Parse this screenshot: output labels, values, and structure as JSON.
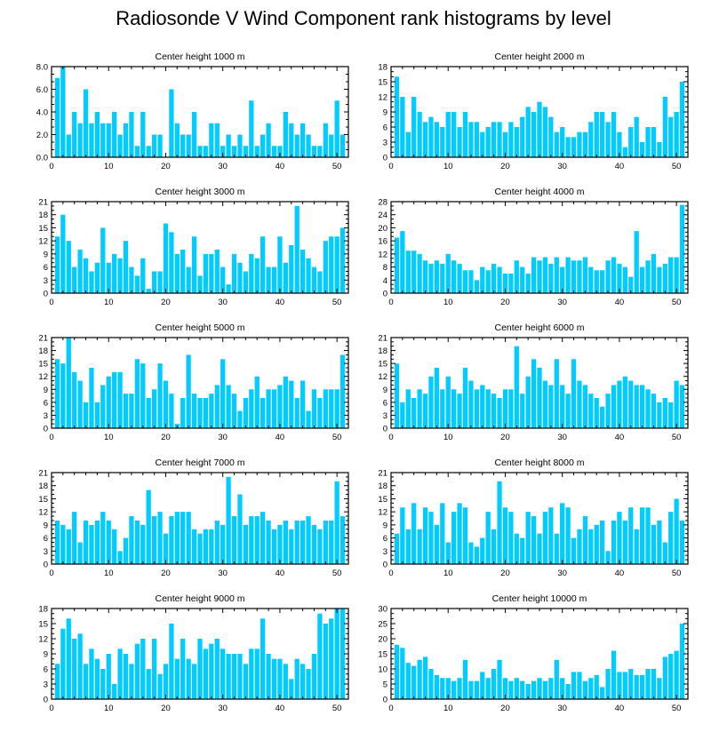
{
  "figure_title": "Radiosonde V Wind Component rank histograms by level",
  "colors": {
    "bar": "#00ccff",
    "axis": "#000000"
  },
  "chart_data": [
    {
      "type": "bar",
      "title": "Center height 1000 m",
      "xlabel": "",
      "ylabel": "",
      "xlim": [
        0,
        52
      ],
      "ylim": [
        0,
        8
      ],
      "xticks": [
        0,
        10,
        20,
        30,
        40,
        50
      ],
      "yticks": [
        0,
        2,
        4,
        6,
        8
      ],
      "ytick_labels": [
        "0.0",
        "2.0",
        "4.0",
        "6.0",
        "8.0"
      ],
      "x": [
        1,
        2,
        3,
        4,
        5,
        6,
        7,
        8,
        9,
        10,
        11,
        12,
        13,
        14,
        15,
        16,
        17,
        18,
        19,
        20,
        21,
        22,
        23,
        24,
        25,
        26,
        27,
        28,
        29,
        30,
        31,
        32,
        33,
        34,
        35,
        36,
        37,
        38,
        39,
        40,
        41,
        42,
        43,
        44,
        45,
        46,
        47,
        48,
        49,
        50,
        51
      ],
      "values": [
        7,
        8,
        2,
        4,
        3,
        6,
        3,
        4,
        3,
        3,
        4,
        2,
        3,
        4,
        1,
        4,
        1,
        2,
        2,
        0,
        6,
        3,
        2,
        2,
        4,
        1,
        1,
        3,
        3,
        1,
        2,
        1,
        2,
        1,
        5,
        1,
        2,
        3,
        1,
        1,
        4,
        3,
        2,
        3,
        2,
        1,
        1,
        3,
        2,
        5,
        2
      ]
    },
    {
      "type": "bar",
      "title": "Center height 2000 m",
      "xlabel": "",
      "ylabel": "",
      "xlim": [
        0,
        52
      ],
      "ylim": [
        0,
        18
      ],
      "xticks": [
        0,
        10,
        20,
        30,
        40,
        50
      ],
      "yticks": [
        0,
        3,
        6,
        9,
        12,
        15,
        18
      ],
      "ytick_labels": [
        "0",
        "3",
        "6",
        "9",
        "12",
        "15",
        "18"
      ],
      "x": [
        1,
        2,
        3,
        4,
        5,
        6,
        7,
        8,
        9,
        10,
        11,
        12,
        13,
        14,
        15,
        16,
        17,
        18,
        19,
        20,
        21,
        22,
        23,
        24,
        25,
        26,
        27,
        28,
        29,
        30,
        31,
        32,
        33,
        34,
        35,
        36,
        37,
        38,
        39,
        40,
        41,
        42,
        43,
        44,
        45,
        46,
        47,
        48,
        49,
        50,
        51
      ],
      "values": [
        16,
        12,
        5,
        12,
        9,
        7,
        8,
        7,
        6,
        9,
        9,
        6,
        9,
        7,
        7,
        5,
        6,
        7,
        7,
        5,
        7,
        6,
        8,
        10,
        9,
        11,
        10,
        8,
        5,
        6,
        4,
        4,
        5,
        5,
        7,
        9,
        9,
        7,
        9,
        5,
        2,
        6,
        8,
        3,
        6,
        6,
        3,
        12,
        8,
        9,
        15
      ]
    },
    {
      "type": "bar",
      "title": "Center height 3000 m",
      "xlabel": "",
      "ylabel": "",
      "xlim": [
        0,
        52
      ],
      "ylim": [
        0,
        21
      ],
      "xticks": [
        0,
        10,
        20,
        30,
        40,
        50
      ],
      "yticks": [
        0,
        3,
        6,
        9,
        12,
        15,
        18,
        21
      ],
      "ytick_labels": [
        "0",
        "3",
        "6",
        "9",
        "12",
        "15",
        "18",
        "21"
      ],
      "x": [
        1,
        2,
        3,
        4,
        5,
        6,
        7,
        8,
        9,
        10,
        11,
        12,
        13,
        14,
        15,
        16,
        17,
        18,
        19,
        20,
        21,
        22,
        23,
        24,
        25,
        26,
        27,
        28,
        29,
        30,
        31,
        32,
        33,
        34,
        35,
        36,
        37,
        38,
        39,
        40,
        41,
        42,
        43,
        44,
        45,
        46,
        47,
        48,
        49,
        50,
        51
      ],
      "values": [
        13,
        18,
        12,
        6,
        10,
        8,
        5,
        7,
        15,
        7,
        9,
        8,
        12,
        6,
        4,
        8,
        1,
        5,
        5,
        16,
        14,
        9,
        10,
        6,
        13,
        4,
        9,
        9,
        10,
        6,
        2,
        9,
        7,
        5,
        9,
        8,
        13,
        6,
        6,
        13,
        7,
        11,
        20,
        10,
        8,
        6,
        5,
        12,
        13,
        13,
        15
      ]
    },
    {
      "type": "bar",
      "title": "Center height 4000 m",
      "xlabel": "",
      "ylabel": "",
      "xlim": [
        0,
        52
      ],
      "ylim": [
        0,
        28
      ],
      "xticks": [
        0,
        10,
        20,
        30,
        40,
        50
      ],
      "yticks": [
        0,
        4,
        8,
        12,
        16,
        20,
        24,
        28
      ],
      "ytick_labels": [
        "0",
        "4",
        "8",
        "12",
        "16",
        "20",
        "24",
        "28"
      ],
      "x": [
        1,
        2,
        3,
        4,
        5,
        6,
        7,
        8,
        9,
        10,
        11,
        12,
        13,
        14,
        15,
        16,
        17,
        18,
        19,
        20,
        21,
        22,
        23,
        24,
        25,
        26,
        27,
        28,
        29,
        30,
        31,
        32,
        33,
        34,
        35,
        36,
        37,
        38,
        39,
        40,
        41,
        42,
        43,
        44,
        45,
        46,
        47,
        48,
        49,
        50,
        51
      ],
      "values": [
        17,
        19,
        13,
        13,
        12,
        10,
        9,
        10,
        9,
        12,
        10,
        9,
        7,
        7,
        4,
        8,
        7,
        9,
        8,
        6,
        6,
        10,
        8,
        6,
        11,
        10,
        11,
        9,
        11,
        8,
        11,
        10,
        10,
        11,
        8,
        7,
        7,
        10,
        11,
        9,
        8,
        5,
        19,
        8,
        10,
        12,
        8,
        9,
        11,
        11,
        27
      ]
    },
    {
      "type": "bar",
      "title": "Center height 5000 m",
      "xlabel": "",
      "ylabel": "",
      "xlim": [
        0,
        52
      ],
      "ylim": [
        0,
        21
      ],
      "xticks": [
        0,
        10,
        20,
        30,
        40,
        50
      ],
      "yticks": [
        0,
        3,
        6,
        9,
        12,
        15,
        18,
        21
      ],
      "ytick_labels": [
        "0",
        "3",
        "6",
        "9",
        "12",
        "15",
        "18",
        "21"
      ],
      "x": [
        1,
        2,
        3,
        4,
        5,
        6,
        7,
        8,
        9,
        10,
        11,
        12,
        13,
        14,
        15,
        16,
        17,
        18,
        19,
        20,
        21,
        22,
        23,
        24,
        25,
        26,
        27,
        28,
        29,
        30,
        31,
        32,
        33,
        34,
        35,
        36,
        37,
        38,
        39,
        40,
        41,
        42,
        43,
        44,
        45,
        46,
        47,
        48,
        49,
        50,
        51
      ],
      "values": [
        16,
        15,
        21,
        13,
        11,
        6,
        14,
        6,
        10,
        12,
        13,
        13,
        8,
        8,
        16,
        15,
        7,
        9,
        15,
        11,
        8,
        1,
        7,
        17,
        8,
        7,
        7,
        8,
        10,
        16,
        10,
        8,
        4,
        7,
        9,
        12,
        7,
        9,
        9,
        10,
        12,
        11,
        7,
        11,
        4,
        9,
        7,
        9,
        9,
        9,
        17
      ]
    },
    {
      "type": "bar",
      "title": "Center height 6000 m",
      "xlabel": "",
      "ylabel": "",
      "xlim": [
        0,
        52
      ],
      "ylim": [
        0,
        21
      ],
      "xticks": [
        0,
        10,
        20,
        30,
        40,
        50
      ],
      "yticks": [
        0,
        3,
        6,
        9,
        12,
        15,
        18,
        21
      ],
      "ytick_labels": [
        "0",
        "3",
        "6",
        "9",
        "12",
        "15",
        "18",
        "21"
      ],
      "x": [
        1,
        2,
        3,
        4,
        5,
        6,
        7,
        8,
        9,
        10,
        11,
        12,
        13,
        14,
        15,
        16,
        17,
        18,
        19,
        20,
        21,
        22,
        23,
        24,
        25,
        26,
        27,
        28,
        29,
        30,
        31,
        32,
        33,
        34,
        35,
        36,
        37,
        38,
        39,
        40,
        41,
        42,
        43,
        44,
        45,
        46,
        47,
        48,
        49,
        50,
        51
      ],
      "values": [
        15,
        6,
        9,
        7,
        9,
        8,
        12,
        14,
        9,
        12,
        9,
        8,
        14,
        11,
        9,
        10,
        9,
        8,
        7,
        9,
        9,
        19,
        8,
        12,
        16,
        14,
        11,
        10,
        16,
        10,
        8,
        16,
        11,
        10,
        8,
        7,
        5,
        8,
        10,
        11,
        12,
        11,
        10,
        10,
        9,
        8,
        6,
        7,
        6,
        11,
        10
      ]
    },
    {
      "type": "bar",
      "title": "Center height 7000 m",
      "xlabel": "",
      "ylabel": "",
      "xlim": [
        0,
        52
      ],
      "ylim": [
        0,
        21
      ],
      "xticks": [
        0,
        10,
        20,
        30,
        40,
        50
      ],
      "yticks": [
        0,
        3,
        6,
        9,
        12,
        15,
        18,
        21
      ],
      "ytick_labels": [
        "0",
        "3",
        "6",
        "9",
        "12",
        "15",
        "18",
        "21"
      ],
      "x": [
        1,
        2,
        3,
        4,
        5,
        6,
        7,
        8,
        9,
        10,
        11,
        12,
        13,
        14,
        15,
        16,
        17,
        18,
        19,
        20,
        21,
        22,
        23,
        24,
        25,
        26,
        27,
        28,
        29,
        30,
        31,
        32,
        33,
        34,
        35,
        36,
        37,
        38,
        39,
        40,
        41,
        42,
        43,
        44,
        45,
        46,
        47,
        48,
        49,
        50,
        51
      ],
      "values": [
        10,
        9,
        8,
        12,
        5,
        10,
        9,
        10,
        12,
        10,
        8,
        3,
        6,
        11,
        10,
        9,
        17,
        11,
        12,
        7,
        11,
        12,
        12,
        12,
        8,
        7,
        8,
        8,
        10,
        9,
        20,
        11,
        16,
        9,
        11,
        11,
        12,
        10,
        8,
        9,
        10,
        8,
        10,
        10,
        11,
        9,
        8,
        10,
        10,
        19,
        11
      ]
    },
    {
      "type": "bar",
      "title": "Center height 8000 m",
      "xlabel": "",
      "ylabel": "",
      "xlim": [
        0,
        52
      ],
      "ylim": [
        0,
        21
      ],
      "xticks": [
        0,
        10,
        20,
        30,
        40,
        50
      ],
      "yticks": [
        0,
        3,
        6,
        9,
        12,
        15,
        18,
        21
      ],
      "ytick_labels": [
        "0",
        "3",
        "6",
        "9",
        "12",
        "15",
        "18",
        "21"
      ],
      "x": [
        1,
        2,
        3,
        4,
        5,
        6,
        7,
        8,
        9,
        10,
        11,
        12,
        13,
        14,
        15,
        16,
        17,
        18,
        19,
        20,
        21,
        22,
        23,
        24,
        25,
        26,
        27,
        28,
        29,
        30,
        31,
        32,
        33,
        34,
        35,
        36,
        37,
        38,
        39,
        40,
        41,
        42,
        43,
        44,
        45,
        46,
        47,
        48,
        49,
        50,
        51
      ],
      "values": [
        7,
        13,
        8,
        14,
        8,
        13,
        12,
        9,
        14,
        5,
        12,
        14,
        13,
        5,
        4,
        6,
        12,
        8,
        19,
        13,
        12,
        7,
        6,
        12,
        11,
        7,
        12,
        13,
        7,
        14,
        13,
        6,
        8,
        11,
        8,
        9,
        10,
        3,
        10,
        12,
        10,
        13,
        8,
        13,
        13,
        9,
        10,
        5,
        12,
        15,
        10
      ]
    },
    {
      "type": "bar",
      "title": "Center height 9000 m",
      "xlabel": "",
      "ylabel": "",
      "xlim": [
        0,
        52
      ],
      "ylim": [
        0,
        18
      ],
      "xticks": [
        0,
        10,
        20,
        30,
        40,
        50
      ],
      "yticks": [
        0,
        3,
        6,
        9,
        12,
        15,
        18
      ],
      "ytick_labels": [
        "0",
        "3",
        "6",
        "9",
        "12",
        "15",
        "18"
      ],
      "x": [
        1,
        2,
        3,
        4,
        5,
        6,
        7,
        8,
        9,
        10,
        11,
        12,
        13,
        14,
        15,
        16,
        17,
        18,
        19,
        20,
        21,
        22,
        23,
        24,
        25,
        26,
        27,
        28,
        29,
        30,
        31,
        32,
        33,
        34,
        35,
        36,
        37,
        38,
        39,
        40,
        41,
        42,
        43,
        44,
        45,
        46,
        47,
        48,
        49,
        50,
        51
      ],
      "values": [
        7,
        14,
        16,
        12,
        13,
        7,
        10,
        8,
        6,
        9,
        3,
        10,
        9,
        7,
        11,
        12,
        6,
        12,
        5,
        7,
        15,
        8,
        12,
        8,
        7,
        12,
        10,
        11,
        12,
        10,
        9,
        9,
        9,
        7,
        10,
        10,
        16,
        9,
        8,
        8,
        7,
        4,
        8,
        7,
        6,
        9,
        17,
        15,
        16,
        18,
        18
      ]
    },
    {
      "type": "bar",
      "title": "Center height 10000 m",
      "xlabel": "",
      "ylabel": "",
      "xlim": [
        0,
        52
      ],
      "ylim": [
        0,
        30
      ],
      "xticks": [
        0,
        10,
        20,
        30,
        40,
        50
      ],
      "yticks": [
        0,
        5,
        10,
        15,
        20,
        25,
        30
      ],
      "ytick_labels": [
        "0",
        "5",
        "10",
        "15",
        "20",
        "25",
        "30"
      ],
      "x": [
        1,
        2,
        3,
        4,
        5,
        6,
        7,
        8,
        9,
        10,
        11,
        12,
        13,
        14,
        15,
        16,
        17,
        18,
        19,
        20,
        21,
        22,
        23,
        24,
        25,
        26,
        27,
        28,
        29,
        30,
        31,
        32,
        33,
        34,
        35,
        36,
        37,
        38,
        39,
        40,
        41,
        42,
        43,
        44,
        45,
        46,
        47,
        48,
        49,
        50,
        51
      ],
      "values": [
        18,
        17,
        12,
        11,
        13,
        14,
        10,
        8,
        7,
        7,
        6,
        7,
        13,
        6,
        6,
        9,
        7,
        10,
        13,
        7,
        6,
        7,
        6,
        5,
        6,
        7,
        6,
        7,
        13,
        7,
        5,
        9,
        9,
        6,
        7,
        8,
        4,
        10,
        16,
        9,
        9,
        10,
        8,
        8,
        10,
        10,
        7,
        14,
        15,
        16,
        25
      ]
    }
  ]
}
